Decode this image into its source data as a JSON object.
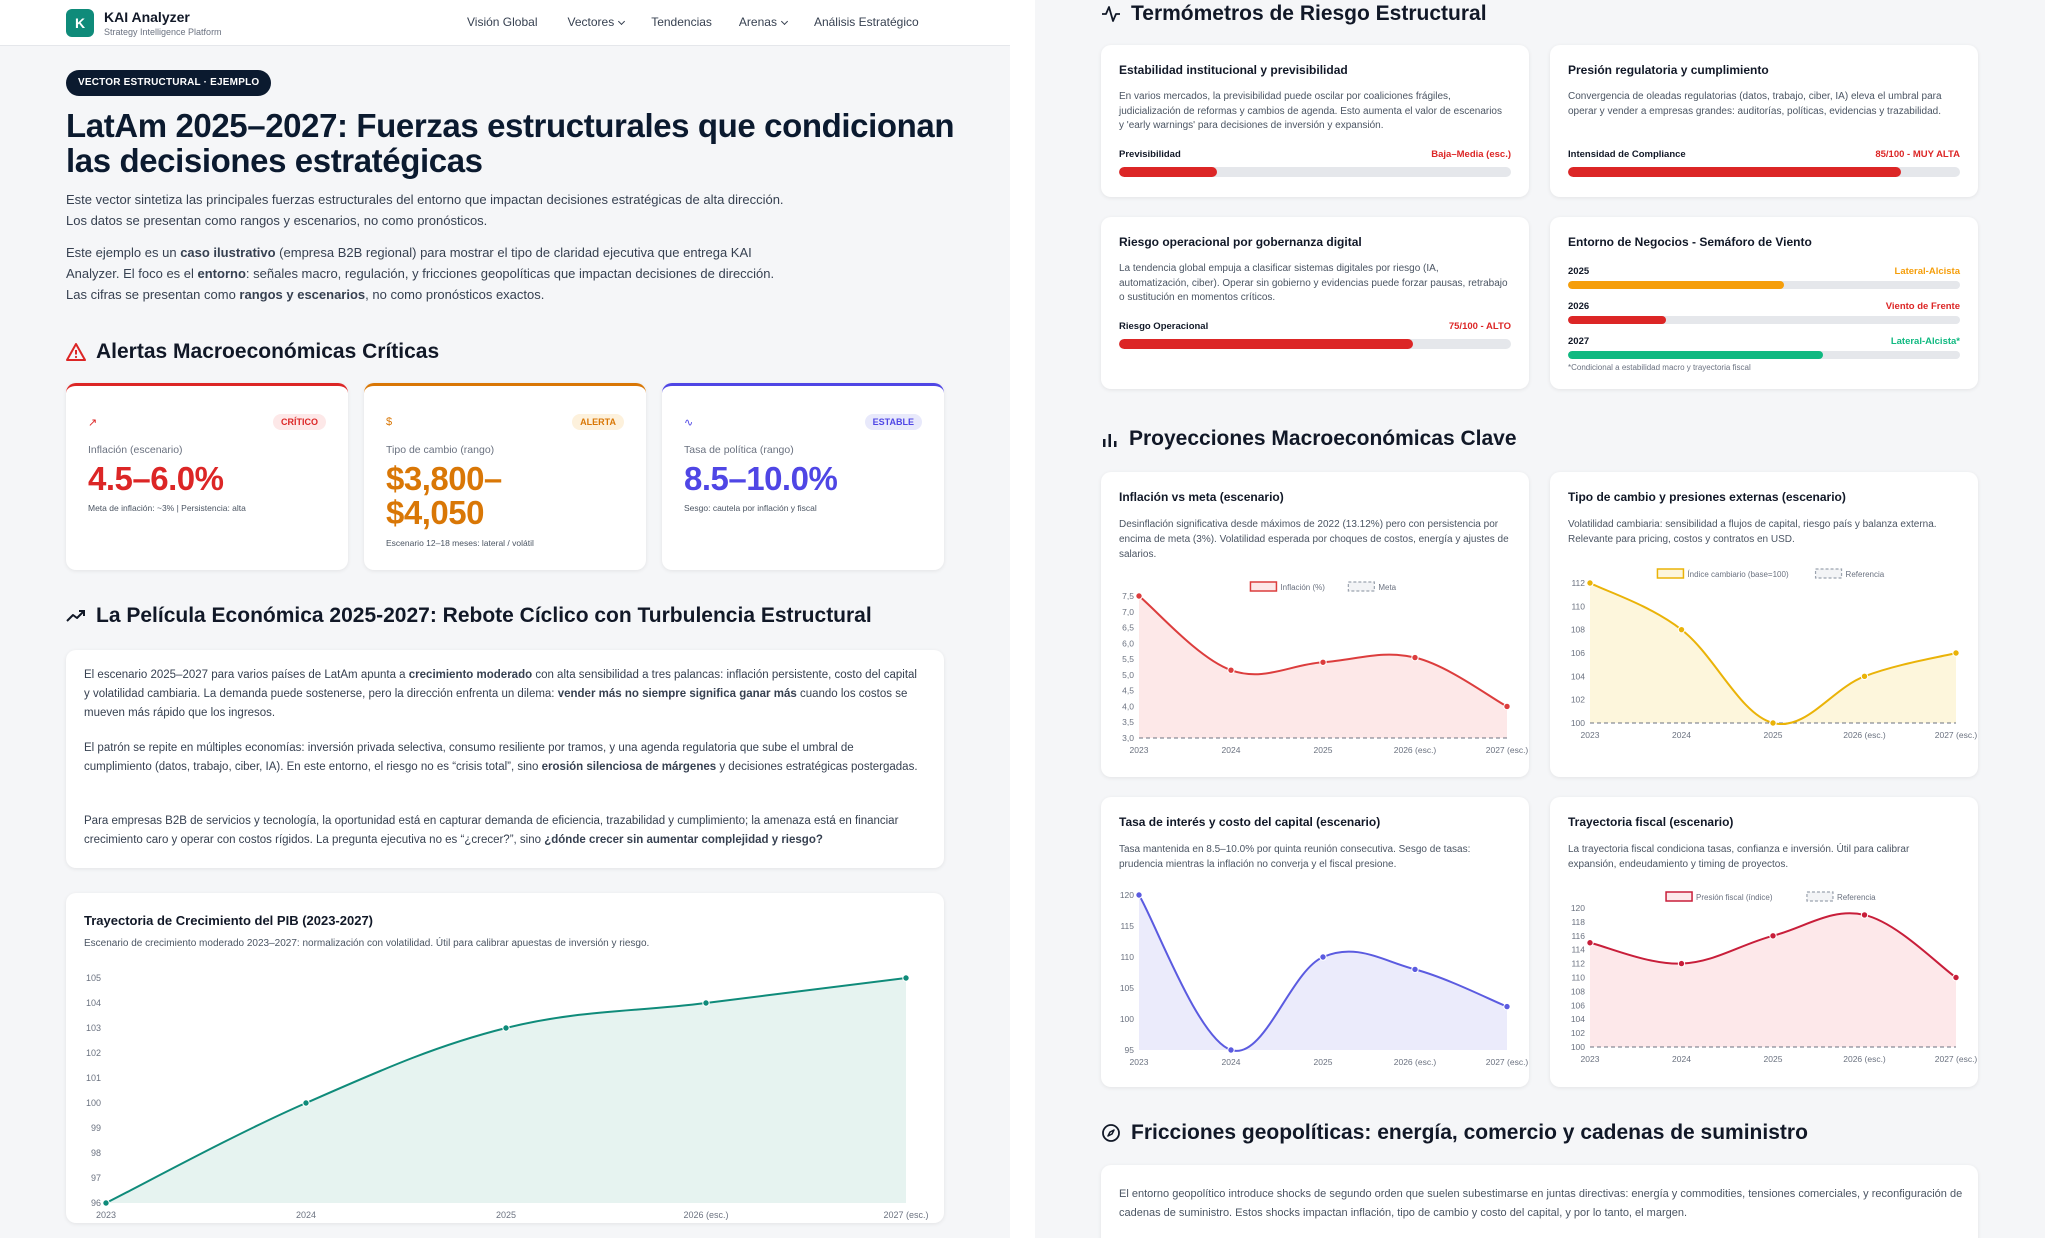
{
  "nav": {
    "logo_letter": "K",
    "brand": "KAI Analyzer",
    "brand_sub": "Strategy Intelligence Platform",
    "links": [
      {
        "label": "Visión Global",
        "dropdown": false
      },
      {
        "label": "Vectores",
        "dropdown": true
      },
      {
        "label": "Tendencias",
        "dropdown": false
      },
      {
        "label": "Arenas",
        "dropdown": true
      },
      {
        "label": "Análisis Estratégico",
        "dropdown": false
      }
    ]
  },
  "hero": {
    "pill": "VECTOR ESTRUCTURAL · EJEMPLO",
    "title": "LatAm 2025–2027: Fuerzas estructurales que condicionan las decisiones estratégicas",
    "intro": "Este vector sintetiza las principales fuerzas estructurales del entorno que impactan decisiones estratégicas de alta dirección. Los datos se presentan como rangos y escenarios, no como pronósticos.",
    "p2_a": "Este ejemplo es un ",
    "p2_b": "caso ilustrativo",
    "p2_c": " (empresa B2B regional) para mostrar el tipo de claridad ejecutiva que entrega KAI Analyzer. El foco es el ",
    "p2_d": "entorno",
    "p2_e": ": señales macro, regulación, y fricciones geopolíticas que impactan decisiones de dirección. Las cifras se presentan como ",
    "p2_f": "rangos y escenarios",
    "p2_g": ", no como pronósticos exactos."
  },
  "alerts": {
    "title": "Alertas Macroeconómicas Críticas",
    "cards": [
      {
        "icon": "trend-up-icon",
        "icon_glyph": "↗",
        "badge": "CRÍTICO",
        "label": "Inflación (escenario)",
        "value": "4.5–6.0%",
        "sub": "Meta de inflación: ~3% | Persistencia: alta",
        "color": "#dc2626",
        "badge_bg": "#fde8e8"
      },
      {
        "icon": "dollar-icon",
        "icon_glyph": "$",
        "badge": "ALERTA",
        "label": "Tipo de cambio (rango)",
        "value": "$3,800–$4,050",
        "sub": "Escenario 12–18 meses: lateral / volátil",
        "color": "#d97706",
        "badge_bg": "#fdf1dc"
      },
      {
        "icon": "pulse-icon",
        "icon_glyph": "∿",
        "badge": "ESTABLE",
        "label": "Tasa de política (rango)",
        "value": "8.5–10.0%",
        "sub": "Sesgo: cautela por inflación y fiscal",
        "color": "#4f46e5",
        "badge_bg": "#e8e9fb"
      }
    ]
  },
  "story": {
    "title": "La Película Económica 2025-2027: Rebote Cíclico con Turbulencia Estructural",
    "p1_a": "El escenario 2025–2027 para varios países de LatAm apunta a ",
    "p1_b": "crecimiento moderado",
    "p1_c": " con alta sensibilidad a tres palancas: inflación persistente, costo del capital y volatilidad cambiaria. La demanda puede sostenerse, pero la dirección enfrenta un dilema: ",
    "p1_d": "vender más no siempre significa ganar más",
    "p1_e": " cuando los costos se mueven más rápido que los ingresos.",
    "p2_a": "El patrón se repite en múltiples economías: inversión privada selectiva, consumo resiliente por tramos, y una agenda regulatoria que sube el umbral de cumplimiento (datos, trabajo, ciber, IA). En este entorno, el riesgo no es “crisis total”, sino ",
    "p2_b": "erosión silenciosa de márgenes",
    "p2_c": " y decisiones estratégicas postergadas.",
    "p3_a": "Para empresas B2B de servicios y tecnología, la oportunidad está en capturar demanda de eficiencia, trazabilidad y cumplimiento; la amenaza está en financiar crecimiento caro y operar con costos rígidos. La pregunta ejecutiva no es “¿crecer?”, sino ",
    "p3_b": "¿dónde crecer sin aumentar complejidad y riesgo?"
  },
  "gdp": {
    "title": "Trayectoria de Crecimiento del PIB (2023-2027)",
    "subtitle": "Escenario de crecimiento moderado 2023–2027: normalización con volatilidad. Útil para calibrar apuestas de inversión y riesgo."
  },
  "risk": {
    "title": "Termómetros de Riesgo Estructural",
    "cards": [
      {
        "title": "Estabilidad institucional y previsibilidad",
        "desc": "En varios mercados, la previsibilidad puede oscilar por coaliciones frágiles, judicialización de reformas y cambios de agenda. Esto aumenta el valor de escenarios y 'early warnings' para decisiones de inversión y expansión.",
        "bar_label": "Previsibilidad",
        "bar_value": "Baja–Media (esc.)",
        "level": 0.25,
        "color": "#dc2626"
      },
      {
        "title": "Presión regulatoria y cumplimiento",
        "desc": "Convergencia de oleadas regulatorias (datos, trabajo, ciber, IA) eleva el umbral para operar y vender a empresas grandes: auditorías, políticas, evidencias y trazabilidad.",
        "bar_label": "Intensidad de Compliance",
        "bar_value": "85/100 - MUY ALTA",
        "level": 0.85,
        "color": "#dc2626"
      },
      {
        "title": "Riesgo operacional por gobernanza digital",
        "desc": "La tendencia global empuja a clasificar sistemas digitales por riesgo (IA, automatización, ciber). Operar sin gobierno y evidencias puede forzar pausas, retrabajo o sustitución en momentos críticos.",
        "bar_label": "Riesgo Operacional",
        "bar_value": "75/100 - ALTO",
        "level": 0.75,
        "color": "#dc2626"
      }
    ],
    "semaforo": {
      "title": "Entorno de Negocios - Semáforo de Viento",
      "rows": [
        {
          "year": "2025",
          "status": "Lateral-Alcista",
          "level": 0.55,
          "color": "#f59e0b"
        },
        {
          "year": "2026",
          "status": "Viento de Frente",
          "level": 0.25,
          "color": "#dc2626"
        },
        {
          "year": "2027",
          "status": "Lateral-Alcista*",
          "level": 0.65,
          "color": "#10b981"
        }
      ],
      "note": "*Condicional a estabilidad macro y trayectoria fiscal"
    }
  },
  "proj": {
    "title": "Proyecciones Macroeconómicas Clave",
    "charts": [
      {
        "title": "Inflación vs meta (escenario)",
        "desc": "Desinflación significativa desde máximos de 2022 (13.12%) pero con persistencia por encima de meta (3%). Volatilidad esperada por choques de costos, energía y ajustes de salarios."
      },
      {
        "title": "Tipo de cambio y presiones externas (escenario)",
        "desc": "Volatilidad cambiaria: sensibilidad a flujos de capital, riesgo país y balanza externa. Relevante para pricing, costos y contratos en USD."
      },
      {
        "title": "Tasa de interés y costo del capital (escenario)",
        "desc": "Tasa mantenida en 8.5–10.0% por quinta reunión consecutiva. Sesgo de tasas: prudencia mientras la inflación no converja y el fiscal presione."
      },
      {
        "title": "Trayectoria fiscal (escenario)",
        "desc": "La trayectoria fiscal condiciona tasas, confianza e inversión. Útil para calibrar expansión, endeudamiento y timing de proyectos."
      }
    ]
  },
  "geo": {
    "title": "Fricciones geopolíticas: energía, comercio y cadenas de suministro",
    "desc": "El entorno geopolítico introduce shocks de segundo orden que suelen subestimarse en juntas directivas: energía y commodities, tensiones comerciales, y reconfiguración de cadenas de suministro. Estos shocks impactan inflación, tipo de cambio y costo del capital, y por lo tanto, el margen."
  },
  "chart_data": [
    {
      "type": "area",
      "id": "gdp",
      "x": [
        "2023",
        "2024",
        "2025",
        "2026 (esc.)",
        "2027 (esc.)"
      ],
      "series": [
        {
          "values": [
            96,
            100,
            103,
            104,
            105
          ]
        }
      ],
      "ylim": [
        96,
        105
      ],
      "yticks": [
        96,
        97,
        98,
        99,
        100,
        101,
        102,
        103,
        104,
        105
      ],
      "color": "#0f8b7a",
      "fill": "#e6f3f0"
    },
    {
      "type": "area",
      "id": "inflation",
      "x": [
        "2023",
        "2024",
        "2025",
        "2026 (esc.)",
        "2027 (esc.)"
      ],
      "series": [
        {
          "name": "Inflación (%)",
          "values": [
            7.5,
            5.15,
            5.4,
            5.55,
            4.0
          ]
        },
        {
          "name": "Meta",
          "values": [
            3.0,
            3.0,
            3.0,
            3.0,
            3.0
          ]
        }
      ],
      "ylim": [
        3.0,
        7.5
      ],
      "yticks": [
        "3,0",
        "3,5",
        "4,0",
        "4,5",
        "5,0",
        "5,5",
        "6,0",
        "6,5",
        "7,0",
        "7,5"
      ],
      "color": "#dc3d3d",
      "fill": "#fde8e8",
      "legend": "top"
    },
    {
      "type": "area",
      "id": "fx",
      "x": [
        "2023",
        "2024",
        "2025",
        "2026 (esc.)",
        "2027 (esc.)"
      ],
      "series": [
        {
          "name": "Índice cambiario (base=100)",
          "values": [
            112,
            108,
            100,
            104,
            106
          ]
        },
        {
          "name": "Referencia",
          "values": [
            100,
            100,
            100,
            100,
            100
          ]
        }
      ],
      "ylim": [
        100,
        112
      ],
      "yticks": [
        "100",
        "102",
        "104",
        "106",
        "108",
        "110",
        "112"
      ],
      "color": "#eab308",
      "fill": "#fdf6dc",
      "legend": "top"
    },
    {
      "type": "area",
      "id": "rates",
      "x": [
        "2023",
        "2024",
        "2025",
        "2026 (esc.)",
        "2027 (esc.)"
      ],
      "series": [
        {
          "values": [
            120,
            95,
            110,
            108,
            102
          ]
        }
      ],
      "ylim": [
        95,
        120
      ],
      "yticks": [
        "95",
        "100",
        "105",
        "110",
        "115",
        "120"
      ],
      "color": "#5b5be0",
      "fill": "#ebebfb"
    },
    {
      "type": "area",
      "id": "fiscal",
      "x": [
        "2023",
        "2024",
        "2025",
        "2026 (esc.)",
        "2027 (esc.)"
      ],
      "series": [
        {
          "name": "Presión fiscal (índice)",
          "values": [
            115,
            112,
            116,
            119,
            110
          ]
        },
        {
          "name": "Referencia",
          "values": [
            100,
            100,
            100,
            100,
            100
          ]
        }
      ],
      "ylim": [
        100,
        120
      ],
      "yticks": [
        "100",
        "102",
        "104",
        "106",
        "108",
        "110",
        "112",
        "114",
        "116",
        "118",
        "120"
      ],
      "color": "#c81e3a",
      "fill": "#fde8ea",
      "legend": "top"
    }
  ]
}
